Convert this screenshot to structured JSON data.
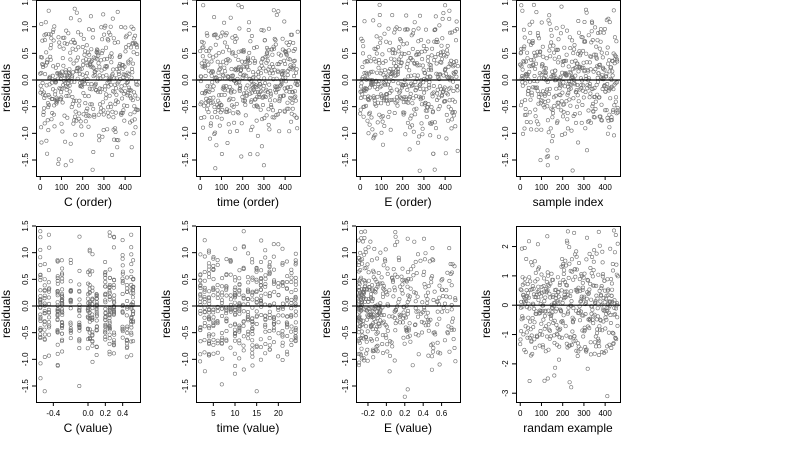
{
  "figure": {
    "background": "#ffffff",
    "point_color": "#6f6f6f",
    "frame_color": "#000000"
  },
  "chart_data": [
    {
      "type": "scatter",
      "panel": "C-order",
      "xlabel": "C (order)",
      "ylabel": "residuals",
      "xlim": [
        -20,
        470
      ],
      "ylim": [
        -1.8,
        1.5
      ],
      "xticks": [
        0,
        100,
        200,
        300,
        400
      ],
      "xtick_labels": [
        "0",
        "100",
        "200",
        "300",
        "400"
      ],
      "yticks": [
        -1.5,
        -1.0,
        -0.5,
        0.0,
        0.5,
        1.0,
        1.5
      ],
      "ytick_labels": [
        "-1.5",
        "-1.0",
        "-0.5",
        "0.0",
        "0.5",
        "1.0",
        "1.5"
      ],
      "hline": 0,
      "sample": {
        "n": 460,
        "min": 0,
        "max": 460,
        "pattern": "uniform",
        "spread": 0.55
      },
      "points": [
        [
          5,
          1.05
        ],
        [
          40,
          1.3
        ],
        [
          60,
          0.9
        ],
        [
          120,
          -1.6
        ],
        [
          250,
          -1.35
        ],
        [
          330,
          0.85
        ],
        [
          430,
          1.0
        ],
        [
          440,
          -1.0
        ]
      ]
    },
    {
      "type": "scatter",
      "panel": "time-order",
      "xlabel": "time (order)",
      "ylabel": "residuals",
      "xlim": [
        -20,
        470
      ],
      "ylim": [
        -1.8,
        1.5
      ],
      "xticks": [
        0,
        100,
        200,
        300,
        400
      ],
      "xtick_labels": [
        "0",
        "100",
        "200",
        "300",
        "400"
      ],
      "yticks": [
        -1.5,
        -1.0,
        -0.5,
        0.0,
        0.5,
        1.0,
        1.5
      ],
      "ytick_labels": [
        "-1.5",
        "-1.0",
        "-0.5",
        "0.0",
        "0.5",
        "1.0",
        "1.5"
      ],
      "hline": 0,
      "sample": {
        "n": 460,
        "min": 0,
        "max": 460,
        "pattern": "uniform",
        "spread": 0.55
      },
      "points": [
        [
          180,
          1.4
        ],
        [
          70,
          -0.6
        ],
        [
          80,
          -0.7
        ],
        [
          300,
          -1.6
        ],
        [
          400,
          0.3
        ],
        [
          440,
          0.35
        ]
      ]
    },
    {
      "type": "scatter",
      "panel": "E-order",
      "xlabel": "E (order)",
      "ylabel": "residuals",
      "xlim": [
        -20,
        470
      ],
      "ylim": [
        -1.8,
        1.5
      ],
      "xticks": [
        0,
        100,
        200,
        300,
        400
      ],
      "xtick_labels": [
        "0",
        "100",
        "200",
        "300",
        "400"
      ],
      "yticks": [
        -1.5,
        -1.0,
        -0.5,
        0.0,
        0.5,
        1.0,
        1.5
      ],
      "ytick_labels": [
        "-1.5",
        "-1.0",
        "-0.5",
        "0.0",
        "0.5",
        "1.0",
        "1.5"
      ],
      "hline": 0,
      "sample": {
        "n": 460,
        "min": 0,
        "max": 460,
        "pattern": "uniform",
        "spread": 0.55
      },
      "points": [
        [
          400,
          1.4
        ],
        [
          420,
          1.3
        ],
        [
          280,
          -1.7
        ],
        [
          90,
          -0.65
        ],
        [
          100,
          -0.7
        ],
        [
          20,
          1.1
        ]
      ]
    },
    {
      "type": "scatter",
      "panel": "sample-index",
      "xlabel": "sample index",
      "ylabel": "residuals",
      "xlim": [
        -20,
        470
      ],
      "ylim": [
        -1.8,
        1.5
      ],
      "xticks": [
        0,
        100,
        200,
        300,
        400
      ],
      "xtick_labels": [
        "0",
        "100",
        "200",
        "300",
        "400"
      ],
      "yticks": [
        -1.5,
        -1.0,
        -0.5,
        0.0,
        0.5,
        1.0,
        1.5
      ],
      "ytick_labels": [
        "-1.5",
        "-1.0",
        "-0.5",
        "0.0",
        "0.5",
        "1.0",
        "1.5"
      ],
      "hline": 0,
      "sample": {
        "n": 460,
        "min": 0,
        "max": 460,
        "pattern": "uniform",
        "spread": 0.55
      },
      "points": [
        [
          5,
          1.4
        ],
        [
          10,
          1.3
        ],
        [
          130,
          -1.6
        ],
        [
          420,
          -0.65
        ],
        [
          430,
          -0.7
        ],
        [
          200,
          1.0
        ]
      ]
    },
    {
      "type": "scatter",
      "panel": "C-value",
      "xlabel": "C (value)",
      "ylabel": "residuals",
      "xlim": [
        -0.6,
        0.6
      ],
      "ylim": [
        -1.8,
        1.5
      ],
      "xticks": [
        -0.4,
        0.0,
        0.2,
        0.4
      ],
      "xtick_labels": [
        "-0.4",
        "0.0",
        "0.2",
        "0.4"
      ],
      "yticks": [
        -1.5,
        -1.0,
        -0.5,
        0.0,
        0.5,
        1.0,
        1.5
      ],
      "ytick_labels": [
        "-1.5",
        "-1.0",
        "-0.5",
        "0.0",
        "0.5",
        "1.0",
        "1.5"
      ],
      "hline": 0,
      "sample": {
        "n": 440,
        "pattern": "columns",
        "spread": 0.5,
        "columns": [
          -0.55,
          -0.5,
          -0.45,
          -0.35,
          -0.3,
          -0.2,
          -0.1,
          0.0,
          0.02,
          0.05,
          0.1,
          0.2,
          0.25,
          0.3,
          0.4,
          0.45,
          0.5,
          0.52
        ]
      },
      "points": [
        [
          -0.55,
          1.4
        ],
        [
          -0.5,
          -1.6
        ],
        [
          0.3,
          1.3
        ],
        [
          0.52,
          0.3
        ],
        [
          -0.1,
          -1.5
        ]
      ]
    },
    {
      "type": "scatter",
      "panel": "time-value",
      "xlabel": "time (value)",
      "ylabel": "residuals",
      "xlim": [
        1,
        25
      ],
      "ylim": [
        -1.8,
        1.5
      ],
      "xticks": [
        5,
        10,
        15,
        20
      ],
      "xtick_labels": [
        "5",
        "10",
        "15",
        "20"
      ],
      "yticks": [
        -1.5,
        -1.0,
        -0.5,
        0.0,
        0.5,
        1.0,
        1.5
      ],
      "ytick_labels": [
        "-1.5",
        "-1.0",
        "-0.5",
        "0.0",
        "0.5",
        "1.0",
        "1.5"
      ],
      "hline": 0,
      "sample": {
        "n": 440,
        "pattern": "columns",
        "spread": 0.55,
        "columns": [
          2,
          3,
          4,
          5,
          6,
          7,
          8,
          9,
          10,
          11,
          12,
          13,
          14,
          15,
          16,
          17,
          18,
          19,
          20,
          21,
          22,
          23,
          24
        ]
      },
      "points": [
        [
          12,
          1.4
        ],
        [
          6,
          -0.65
        ],
        [
          6,
          -0.7
        ],
        [
          15,
          -1.6
        ],
        [
          24,
          0.3
        ]
      ]
    },
    {
      "type": "scatter",
      "panel": "E-value",
      "xlabel": "E (value)",
      "ylabel": "residuals",
      "xlim": [
        -0.33,
        0.8
      ],
      "ylim": [
        -1.8,
        1.5
      ],
      "xticks": [
        -0.2,
        0.0,
        0.2,
        0.4,
        0.6
      ],
      "xtick_labels": [
        "-0.2",
        "0.0",
        "0.2",
        "0.4",
        "0.6"
      ],
      "yticks": [
        -1.5,
        -1.0,
        -0.5,
        0.0,
        0.5,
        1.0,
        1.5
      ],
      "ytick_labels": [
        "-1.5",
        "-1.0",
        "-0.5",
        "0.0",
        "0.5",
        "1.0",
        "1.5"
      ],
      "hline": 0,
      "sample": {
        "n": 440,
        "pattern": "skewed",
        "spread": 0.55,
        "min": -0.3,
        "max": 0.75
      },
      "points": [
        [
          -0.3,
          0.9
        ],
        [
          -0.3,
          -0.9
        ],
        [
          0.1,
          1.3
        ],
        [
          0.2,
          -1.7
        ],
        [
          0.7,
          0.6
        ]
      ]
    },
    {
      "type": "scatter",
      "panel": "random-example",
      "xlabel": "randam example",
      "ylabel": "residuals",
      "xlim": [
        -20,
        470
      ],
      "ylim": [
        -3.3,
        2.7
      ],
      "xticks": [
        0,
        100,
        200,
        300,
        400
      ],
      "xtick_labels": [
        "0",
        "100",
        "200",
        "300",
        "400"
      ],
      "yticks": [
        -3,
        -2,
        -1,
        0,
        1,
        2
      ],
      "ytick_labels": [
        "-3",
        "-2",
        "-1",
        "0",
        "1",
        "2"
      ],
      "hline": 0,
      "sample": {
        "n": 460,
        "min": 0,
        "max": 460,
        "pattern": "uniform",
        "spread": 0.95
      },
      "points": [
        [
          370,
          2.5
        ],
        [
          220,
          2.2
        ],
        [
          410,
          -3.1
        ],
        [
          240,
          -2.8
        ],
        [
          130,
          -2.5
        ]
      ]
    }
  ]
}
